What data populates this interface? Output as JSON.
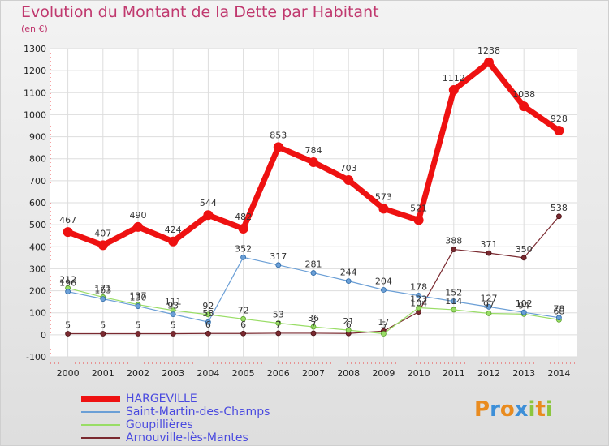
{
  "chart_data": {
    "type": "line",
    "title": "Evolution du Montant de la Dette par Habitant",
    "unit_label": "(en €)",
    "x": [
      "2000",
      "2001",
      "2002",
      "2003",
      "2004",
      "2005",
      "2006",
      "2007",
      "2008",
      "2009",
      "2010",
      "2011",
      "2012",
      "2013",
      "2014"
    ],
    "ylim": [
      -100,
      1300
    ],
    "yticks": [
      -100,
      0,
      100,
      200,
      300,
      400,
      500,
      600,
      700,
      800,
      900,
      1000,
      1100,
      1200,
      1300
    ],
    "grid": true,
    "legend_position": "bottom-left",
    "series": [
      {
        "name": "HARGEVILLE",
        "color": "#ee1111",
        "values": [
          467,
          407,
          490,
          424,
          544,
          482,
          853,
          784,
          703,
          573,
          521,
          1112,
          1238,
          1038,
          928
        ]
      },
      {
        "name": "Saint-Martin-des-Champs",
        "color": "#6b9fd6",
        "values": [
          196,
          163,
          130,
          93,
          58,
          352,
          317,
          281,
          244,
          204,
          178,
          152,
          127,
          102,
          78
        ]
      },
      {
        "name": "Goupillières",
        "color": "#99dd66",
        "values": [
          212,
          171,
          137,
          111,
          92,
          72,
          53,
          36,
          21,
          5,
          123,
          114,
          97,
          94,
          68
        ]
      },
      {
        "name": "Arnouville-lès-Mantes",
        "color": "#7a2a30",
        "values": [
          5,
          5,
          5,
          5,
          6,
          6,
          7,
          7,
          6,
          17,
          104,
          388,
          371,
          350,
          538
        ]
      }
    ]
  },
  "logo": {
    "letters": [
      "P",
      "r",
      "o",
      "x",
      "i",
      "t",
      "i"
    ],
    "colors": [
      "#e98b1f",
      "#3d8fd8",
      "#e98b1f",
      "#3d8fd8",
      "#8cc63f",
      "#e98b1f",
      "#8cc63f"
    ]
  }
}
